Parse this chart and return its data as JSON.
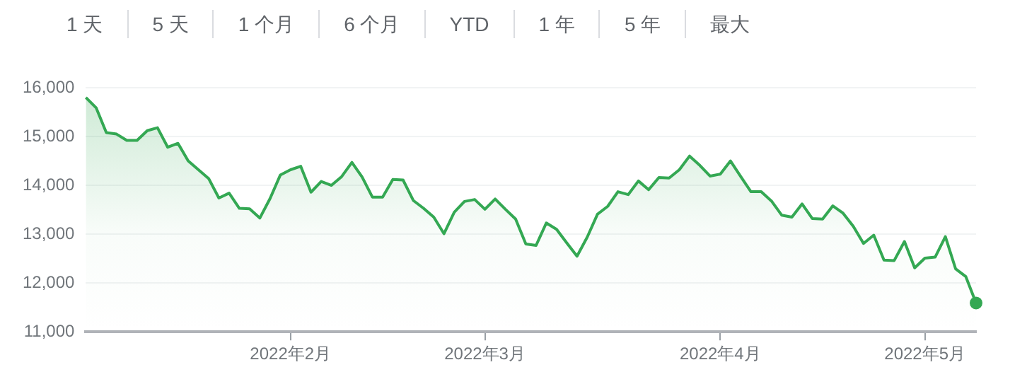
{
  "chart_data": {
    "type": "area",
    "annotations": [
      "1 天",
      "5 天",
      "1 个月",
      "6 个月",
      "YTD",
      "1 年",
      "5 年",
      "最大"
    ],
    "categories": [
      null,
      null,
      null,
      null,
      null,
      null,
      null,
      null,
      null,
      null,
      null,
      null,
      null,
      null,
      null,
      null,
      null,
      null,
      null,
      null,
      "2022年2月",
      null,
      null,
      null,
      null,
      null,
      null,
      null,
      null,
      null,
      null,
      null,
      null,
      null,
      null,
      null,
      null,
      null,
      null,
      "2022年3月",
      null,
      null,
      null,
      null,
      null,
      null,
      null,
      null,
      null,
      null,
      null,
      null,
      null,
      null,
      null,
      null,
      null,
      null,
      null,
      null,
      null,
      null,
      "2022年4月",
      null,
      null,
      null,
      null,
      null,
      null,
      null,
      null,
      null,
      null,
      null,
      null,
      null,
      null,
      null,
      null,
      null,
      null,
      null,
      "2022年5月",
      null,
      null,
      null,
      null,
      null
    ],
    "series": [
      {
        "color": "#34a853",
        "values": [
          15800,
          15590,
          15080,
          15050,
          14920,
          14920,
          15120,
          15180,
          14780,
          14860,
          14500,
          14320,
          14140,
          13740,
          13840,
          13530,
          13520,
          13330,
          13730,
          14210,
          14320,
          14390,
          13860,
          14080,
          14000,
          14180,
          14470,
          14170,
          13760,
          13760,
          14120,
          14110,
          13690,
          13530,
          13350,
          13010,
          13450,
          13670,
          13710,
          13510,
          13720,
          13510,
          13310,
          12800,
          12770,
          13230,
          13100,
          12820,
          12550,
          12940,
          13410,
          13570,
          13870,
          13810,
          14090,
          13910,
          14160,
          14150,
          14320,
          14600,
          14410,
          14190,
          14230,
          14500,
          14180,
          13870,
          13870,
          13680,
          13390,
          13350,
          13620,
          13320,
          13310,
          13580,
          13430,
          13160,
          12810,
          12980,
          12470,
          12460,
          12850,
          12310,
          12510,
          12530,
          12950,
          12290,
          12130,
          11590
        ]
      }
    ],
    "ylim": [
      11000,
      16000
    ],
    "yticks": [
      {
        "value": 11000,
        "label": "11,000"
      },
      {
        "value": 12000,
        "label": "12,000"
      },
      {
        "value": 13000,
        "label": "13,000"
      },
      {
        "value": 14000,
        "label": "14,000"
      },
      {
        "value": 15000,
        "label": "15,000"
      },
      {
        "value": 16000,
        "label": "16,000"
      }
    ],
    "grid": "y",
    "legend": false
  }
}
